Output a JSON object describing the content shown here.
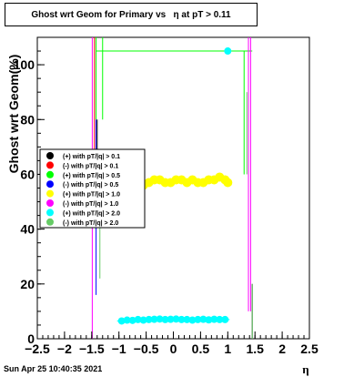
{
  "title": "Ghost wrt Geom for Primary vs   η at pT > 0.11",
  "timestamp": "Sun Apr 25 10:40:35 2021",
  "chart_data": {
    "type": "scatter",
    "xlabel": "η",
    "ylabel": "Ghost wrt Geom(%)",
    "xlim": [
      -2.5,
      2.5
    ],
    "ylim": [
      0,
      110
    ],
    "xticks": [
      "−2.5",
      "−2",
      "−1.5",
      "−1",
      "−0.5",
      "0",
      "0.5",
      "1",
      "1.5",
      "2",
      "2.5"
    ],
    "yticks": [
      "0",
      "20",
      "40",
      "60",
      "80",
      "100"
    ],
    "legend_position": "left",
    "series": [
      {
        "name": "(+) with pT/|q| > 0.1",
        "color": "#000000",
        "points": [
          [
            -1.43,
            80
          ],
          [
            -1.43,
            62
          ],
          [
            1.43,
            6
          ],
          [
            1.43,
            2
          ]
        ]
      },
      {
        "name": "(-) with pT/|q| > 0.1",
        "color": "#ff0000",
        "points": [
          [
            -1.45,
            110
          ],
          [
            -1.45,
            60
          ]
        ]
      },
      {
        "name": "(+) with pT/|q| > 0.5",
        "color": "#00ff00",
        "points": [
          [
            -1.43,
            105
          ],
          [
            1.45,
            105
          ]
        ]
      },
      {
        "name": "(-) with pT/|q| > 0.5",
        "color": "#0000ff",
        "points": [
          [
            -1.43,
            80
          ],
          [
            -1.43,
            16
          ]
        ]
      },
      {
        "name": "(+) with pT/|q| > 1.0",
        "color": "#ffff00",
        "points": [
          [
            -0.95,
            58
          ],
          [
            -0.85,
            57
          ],
          [
            -0.75,
            58
          ],
          [
            -0.65,
            57
          ],
          [
            -0.55,
            56
          ],
          [
            -0.45,
            57
          ],
          [
            -0.35,
            58
          ],
          [
            -0.25,
            58
          ],
          [
            -0.15,
            57
          ],
          [
            -0.05,
            57
          ],
          [
            0.05,
            58
          ],
          [
            0.15,
            58
          ],
          [
            0.25,
            57
          ],
          [
            0.35,
            58
          ],
          [
            0.45,
            57
          ],
          [
            0.55,
            57
          ],
          [
            0.65,
            58
          ],
          [
            0.75,
            58
          ],
          [
            0.85,
            59
          ],
          [
            0.95,
            58
          ],
          [
            1.0,
            57
          ]
        ]
      },
      {
        "name": "(-) with pT/|q| > 1.0",
        "color": "#ff00ff",
        "points": [
          [
            -1.47,
            110
          ],
          [
            -1.47,
            2
          ]
        ]
      },
      {
        "name": "(+) with pT/|q| > 2.0",
        "color": "#00ffff",
        "points": [
          [
            -0.95,
            6.5
          ],
          [
            -0.85,
            6.8
          ],
          [
            -0.75,
            6.7
          ],
          [
            -0.65,
            7
          ],
          [
            -0.55,
            6.8
          ],
          [
            -0.45,
            7
          ],
          [
            -0.35,
            7.1
          ],
          [
            -0.25,
            7.2
          ],
          [
            -0.15,
            7
          ],
          [
            -0.05,
            7.1
          ],
          [
            0.05,
            7.2
          ],
          [
            0.15,
            7
          ],
          [
            0.25,
            7
          ],
          [
            0.35,
            6.8
          ],
          [
            0.45,
            7
          ],
          [
            0.55,
            7.1
          ],
          [
            0.65,
            6.9
          ],
          [
            0.75,
            7.1
          ],
          [
            0.85,
            7
          ],
          [
            0.95,
            7
          ],
          [
            1.0,
            105
          ]
        ]
      },
      {
        "name": "(-) with pT/|q| > 2.0",
        "color": "#66cc66",
        "points": [
          [
            -1.38,
            80
          ],
          [
            -1.38,
            22
          ],
          [
            1.35,
            60
          ],
          [
            1.35,
            2
          ]
        ]
      }
    ]
  }
}
